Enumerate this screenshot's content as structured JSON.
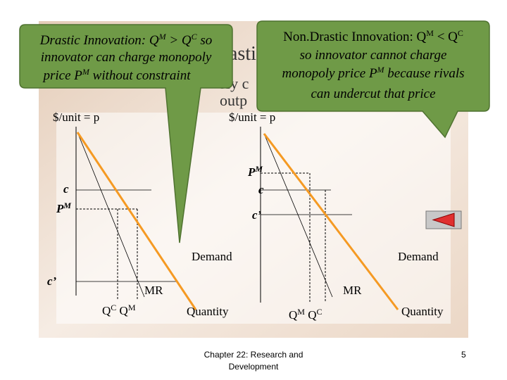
{
  "background_title_fragments": [
    "astic",
    "oly c",
    "outp"
  ],
  "callouts": [
    {
      "lines": [
        [
          "Drastic Innovation: Q",
          "M",
          " > Q",
          "C",
          " so"
        ],
        [
          "innovator can charge monopoly"
        ],
        [
          "price P",
          "M",
          " without constraint"
        ]
      ]
    },
    {
      "lines": [
        [
          "Non.Drastic Innovation: Q",
          "M",
          " < Q",
          "C"
        ],
        [
          "so innovator cannot charge"
        ],
        [
          "monopoly price P",
          "M",
          " because rivals"
        ],
        [
          "can undercut that price"
        ]
      ]
    }
  ],
  "left_diagram": {
    "y_axis_label": "$/unit = p",
    "c_label": "c",
    "pm_label": [
      "P",
      "M"
    ],
    "c_prime_label": "c’",
    "demand_label": "Demand",
    "mr_label": "MR",
    "q_labels": [
      "Q",
      "C",
      " Q",
      "M"
    ],
    "x_axis_label": "Quantity"
  },
  "right_diagram": {
    "y_axis_label": "$/unit = p",
    "pm_label": [
      "P",
      "M"
    ],
    "c_label": "c",
    "c_prime_label": "c’",
    "demand_label": "Demand",
    "mr_label": "MR",
    "q_labels": [
      "Q",
      "M",
      " Q",
      "C"
    ],
    "x_axis_label": "Quantity"
  },
  "footer": {
    "lines": [
      "Chapter 22: Research and",
      "Development"
    ],
    "page": "5"
  }
}
